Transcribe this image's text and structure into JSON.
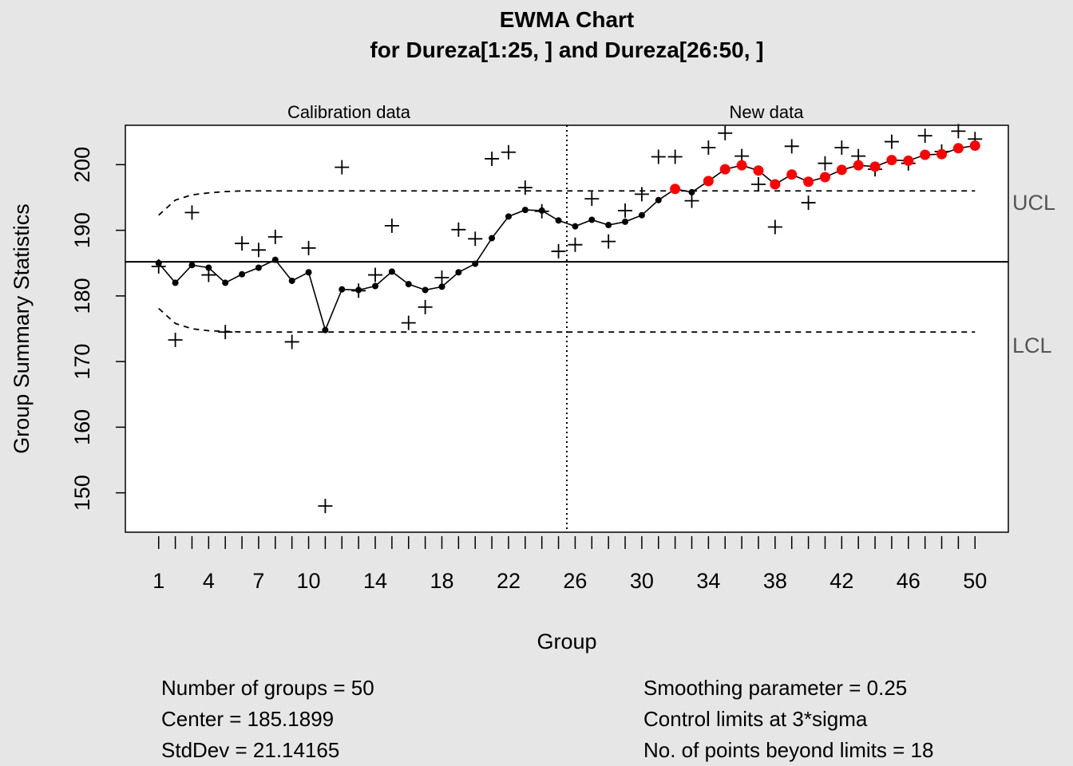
{
  "chart_data": {
    "type": "line",
    "title": "EWMA Chart",
    "subtitle": "for Dureza[1:25, ] and Dureza[26:50, ]",
    "xlabel": "Group",
    "ylabel": "Group Summary Statistics",
    "ylim": [
      144,
      206
    ],
    "xlim": [
      -1,
      52
    ],
    "yticks": [
      150,
      160,
      170,
      180,
      190,
      200
    ],
    "xtick_labels": [
      1,
      4,
      7,
      10,
      14,
      18,
      22,
      26,
      30,
      34,
      38,
      42,
      46,
      50
    ],
    "section_labels": [
      "Calibration data",
      "New data"
    ],
    "calibration_end": 25.5,
    "center": 185.1899,
    "ucl": 196.0,
    "lcl": 174.5,
    "ucl_label": "UCL",
    "lcl_label": "LCL",
    "ucl_start": [
      192.3,
      194.6,
      195.4,
      195.7,
      195.9
    ],
    "lcl_start": [
      178.1,
      175.8,
      175.0,
      174.7,
      174.6
    ],
    "groups": [
      1,
      2,
      3,
      4,
      5,
      6,
      7,
      8,
      9,
      10,
      11,
      12,
      13,
      14,
      15,
      16,
      17,
      18,
      19,
      20,
      21,
      22,
      23,
      24,
      25,
      26,
      27,
      28,
      29,
      30,
      31,
      32,
      33,
      34,
      35,
      36,
      37,
      38,
      39,
      40,
      41,
      42,
      43,
      44,
      45,
      46,
      47,
      48,
      49,
      50
    ],
    "statistics": [
      184.5,
      173.3,
      192.7,
      183.2,
      174.5,
      188.0,
      187.0,
      189.0,
      173.0,
      187.3,
      148.0,
      199.6,
      180.8,
      183.2,
      190.7,
      175.9,
      178.3,
      182.8,
      190.1,
      188.7,
      200.9,
      201.9,
      196.5,
      192.9,
      186.8,
      187.8,
      194.8,
      188.3,
      193.0,
      195.5,
      201.2,
      201.2,
      194.5,
      202.6,
      204.8,
      201.3,
      197.0,
      190.5,
      202.8,
      194.2,
      200.2,
      202.6,
      201.3,
      199.3,
      203.5,
      200.2,
      204.4,
      202.0,
      205.1,
      203.9
    ],
    "ewma": [
      185.0,
      182.0,
      184.7,
      184.3,
      182.0,
      183.3,
      184.3,
      185.5,
      182.3,
      183.6,
      174.8,
      181.0,
      180.9,
      181.5,
      183.7,
      181.8,
      180.9,
      181.4,
      183.6,
      184.9,
      188.8,
      192.1,
      193.1,
      193.0,
      191.5,
      190.6,
      191.6,
      190.8,
      191.3,
      192.3,
      194.6,
      196.3,
      195.8,
      197.5,
      199.3,
      199.9,
      199.1,
      197.0,
      198.5,
      197.4,
      198.1,
      199.2,
      199.9,
      199.7,
      200.7,
      200.6,
      201.5,
      201.6,
      202.5,
      202.9
    ],
    "out_of_control_color": "#ff0000",
    "series": [
      {
        "name": "",
        "marker": "plus",
        "values_ref": "statistics"
      },
      {
        "name": "",
        "marker": "dot-line",
        "values_ref": "ewma"
      }
    ]
  },
  "stats": {
    "left": [
      "Number of groups = 50",
      "Center = 185.1899",
      "StdDev = 21.14165"
    ],
    "right": [
      "Smoothing parameter =  0.25",
      "Control limits at 3*sigma",
      "No. of points beyond limits = 18"
    ]
  }
}
